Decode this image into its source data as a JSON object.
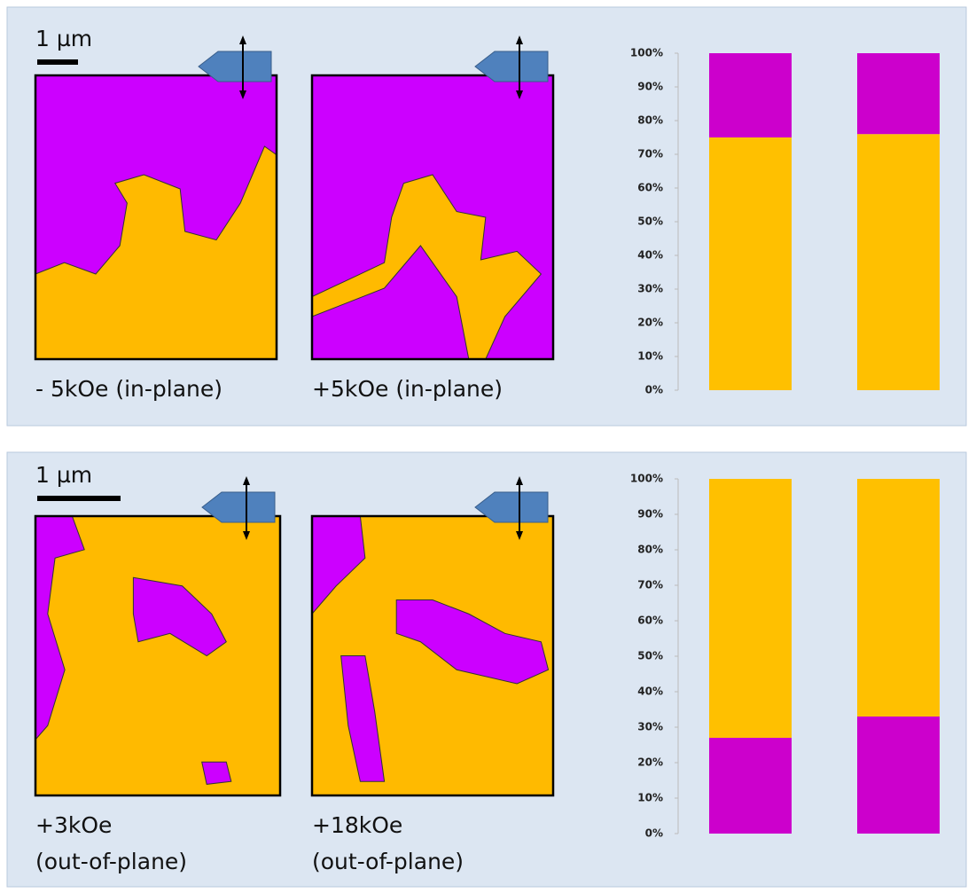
{
  "panels": [
    {
      "scale_label": "1 µm",
      "captions": [
        [
          "- 5kOe (in-plane)"
        ],
        [
          "+5kOe (in-plane)"
        ]
      ]
    },
    {
      "scale_label": "1 µm",
      "captions": [
        [
          "+3kOe",
          "(out-of-plane)"
        ],
        [
          "+18kOe",
          "(out-of-plane)"
        ]
      ]
    }
  ],
  "chart_data": [
    {
      "type": "stacked_bar",
      "categories": [
        null,
        null
      ],
      "series": [
        {
          "color": "#ffc000",
          "values": [
            75,
            76
          ]
        },
        {
          "color": "#cc00cc",
          "values": [
            25,
            24
          ]
        }
      ],
      "ylim": [
        0,
        100
      ],
      "yticks": [
        {
          "value": 0,
          "label": "0%"
        },
        {
          "value": 10,
          "label": "10%"
        },
        {
          "value": 20,
          "label": "20%"
        },
        {
          "value": 30,
          "label": "30%"
        },
        {
          "value": 40,
          "label": "40%"
        },
        {
          "value": 50,
          "label": "50%"
        },
        {
          "value": 60,
          "label": "60%"
        },
        {
          "value": 70,
          "label": "70%"
        },
        {
          "value": 80,
          "label": "80%"
        },
        {
          "value": 90,
          "label": "90%"
        },
        {
          "value": 100,
          "label": "100%"
        }
      ]
    },
    {
      "type": "stacked_bar",
      "categories": [
        null,
        null
      ],
      "series": [
        {
          "color": "#cc00cc",
          "values": [
            27,
            33
          ]
        },
        {
          "color": "#ffc000",
          "values": [
            73,
            67
          ]
        }
      ],
      "ylim": [
        0,
        100
      ],
      "yticks": [
        {
          "value": 0,
          "label": "0%"
        },
        {
          "value": 10,
          "label": "10%"
        },
        {
          "value": 20,
          "label": "20%"
        },
        {
          "value": 30,
          "label": "30%"
        },
        {
          "value": 40,
          "label": "40%"
        },
        {
          "value": 50,
          "label": "50%"
        },
        {
          "value": 60,
          "label": "60%"
        },
        {
          "value": 70,
          "label": "70%"
        },
        {
          "value": 80,
          "label": "80%"
        },
        {
          "value": 90,
          "label": "90%"
        },
        {
          "value": 100,
          "label": "100%"
        }
      ]
    }
  ]
}
